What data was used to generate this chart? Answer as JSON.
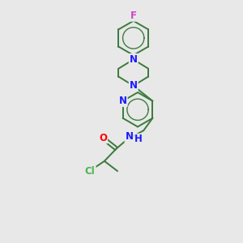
{
  "bg_color": "#e8e8e8",
  "bond_color": "#3a7a3a",
  "bond_width": 1.4,
  "atom_colors": {
    "N": "#1a1aff",
    "O": "#ff0000",
    "Cl": "#4db34d",
    "F": "#cc44cc",
    "C": "#3a7a3a",
    "H": "#1a1aff"
  },
  "font_size_atom": 8.5
}
